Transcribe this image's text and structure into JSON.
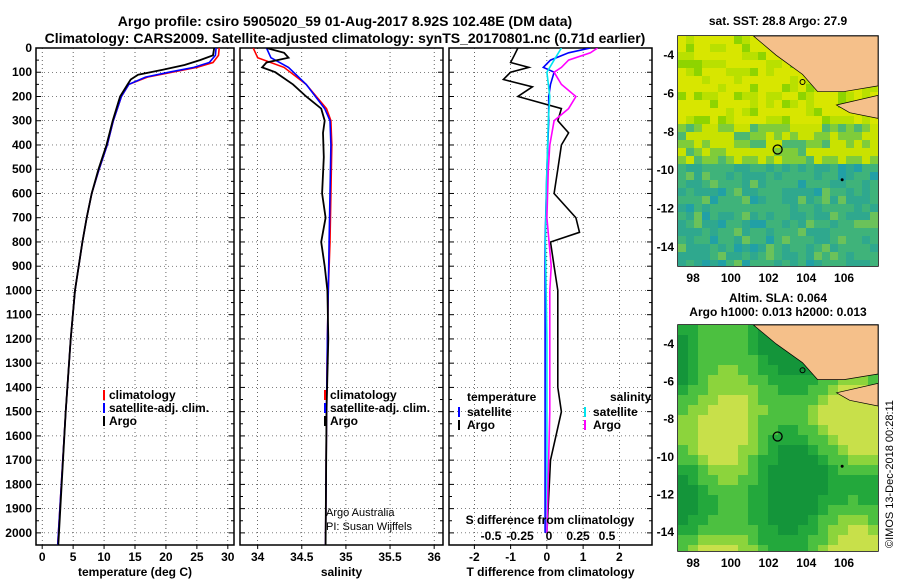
{
  "title_line1": "Argo profile: csiro 5905020_59 01-Aug-2017 8.92S 102.48E (DM data)",
  "title_line2": "Climatology: CARS2009. Satellite-adjusted climatology: synTS_20170801.nc (0.71d earlier)",
  "colors": {
    "climatology": "#ff0000",
    "satellite": "#0000ff",
    "argo": "#000000",
    "sat_salinity": "#00e5ee",
    "argo_salinity": "#ff00ff",
    "land": "#f5c08a"
  },
  "chart_data": [
    {
      "type": "line",
      "xlabel": "temperature (deg C)",
      "ylabel": "",
      "xlim": [
        -1,
        31
      ],
      "ylim": [
        2050,
        0
      ],
      "xticks": [
        0,
        5,
        10,
        15,
        20,
        25,
        30
      ],
      "yticks": [
        0,
        100,
        200,
        300,
        400,
        500,
        600,
        700,
        800,
        900,
        1000,
        1100,
        1200,
        1300,
        1400,
        1500,
        1600,
        1700,
        1800,
        1900,
        2000
      ],
      "legend": [
        "climatology",
        "satellite-adj. clim.",
        "Argo"
      ],
      "series": [
        {
          "name": "climatology",
          "depth": [
            0,
            30,
            60,
            80,
            100,
            120,
            150,
            200,
            300,
            400,
            500,
            600,
            700,
            800,
            1000,
            1200,
            1500,
            2050
          ],
          "values": [
            28.6,
            28.5,
            27.6,
            25,
            21,
            17,
            14,
            12.8,
            11.5,
            10.5,
            9.2,
            8,
            7.2,
            6.5,
            5.3,
            4.6,
            3.8,
            2.5
          ]
        },
        {
          "name": "satellite-adj. clim.",
          "depth": [
            0,
            30,
            60,
            80,
            100,
            120,
            150,
            200,
            300,
            400,
            500,
            600,
            700,
            800,
            1000,
            1200,
            1500,
            2050
          ],
          "values": [
            28.1,
            28,
            27,
            24.5,
            20.5,
            16.7,
            14,
            12.8,
            11.5,
            10.5,
            9.2,
            8,
            7.2,
            6.5,
            5.3,
            4.6,
            3.8,
            2.5
          ]
        },
        {
          "name": "Argo",
          "depth": [
            0,
            30,
            50,
            70,
            90,
            110,
            130,
            150,
            200,
            300,
            400,
            500,
            600,
            700,
            800,
            1000,
            1200,
            1500,
            2050
          ],
          "values": [
            27.8,
            27.6,
            25.5,
            23,
            19.5,
            15.5,
            14.3,
            13.8,
            12.6,
            11.4,
            10.4,
            9.1,
            8,
            7.2,
            6.5,
            5.3,
            4.6,
            3.8,
            2.6
          ]
        }
      ]
    },
    {
      "type": "line",
      "xlabel": "salinity",
      "xlim": [
        33.8,
        36.1
      ],
      "ylim": [
        2050,
        0
      ],
      "xticks": [
        34,
        34.5,
        35,
        35.5,
        36
      ],
      "legend": [
        "climatology",
        "satellite-adj. clim.",
        "Argo"
      ],
      "annotation": [
        "Argo Australia",
        "PI: Susan Wijffels"
      ],
      "series": [
        {
          "name": "climatology",
          "depth": [
            0,
            40,
            80,
            150,
            250,
            300,
            400,
            600,
            800,
            1000,
            1200,
            1500,
            2050
          ],
          "values": [
            33.95,
            34.0,
            34.3,
            34.55,
            34.78,
            34.83,
            34.84,
            34.83,
            34.82,
            34.8,
            34.79,
            34.78,
            34.77
          ]
        },
        {
          "name": "satellite-adj. clim.",
          "depth": [
            0,
            40,
            80,
            150,
            250,
            300,
            400,
            600,
            800,
            1000,
            1200,
            1500,
            2050
          ],
          "values": [
            34.1,
            34.15,
            34.35,
            34.55,
            34.76,
            34.82,
            34.83,
            34.82,
            34.81,
            34.8,
            34.79,
            34.78,
            34.77
          ]
        },
        {
          "name": "Argo",
          "depth": [
            0,
            20,
            40,
            60,
            80,
            100,
            150,
            200,
            250,
            300,
            350,
            450,
            600,
            700,
            800,
            900,
            1000,
            1200,
            1500,
            2050
          ],
          "values": [
            34.1,
            34.3,
            34.35,
            34.1,
            34.05,
            34.2,
            34.4,
            34.55,
            34.72,
            34.76,
            34.74,
            34.75,
            34.73,
            34.77,
            34.72,
            34.76,
            34.79,
            34.8,
            34.78,
            34.77
          ]
        }
      ]
    },
    {
      "type": "line",
      "xlabel": "T difference from climatology",
      "xlabel_top": "S difference from climatology",
      "xlim": [
        -2.7,
        2.9
      ],
      "ylim": [
        2050,
        0
      ],
      "xticks": [
        -2,
        -1,
        0,
        1,
        2
      ],
      "xticks_top": [
        -0.5,
        -0.25,
        0,
        0.25,
        0.5
      ],
      "legend_left_title": "temperature",
      "legend_right_title": "salinity",
      "legend": [
        "satellite",
        "Argo",
        "satellite",
        "Argo"
      ],
      "series": [
        {
          "name": "satellite",
          "kind": "temperature",
          "depth": [
            0,
            20,
            50,
            80,
            100,
            150,
            200,
            300,
            500,
            800,
            1200,
            1600,
            2000
          ],
          "values": [
            1.2,
            0.6,
            0.1,
            -0.1,
            0.2,
            0.1,
            0.05,
            0.05,
            0.0,
            -0.05,
            -0.05,
            -0.05,
            -0.05
          ]
        },
        {
          "name": "Argo",
          "kind": "temperature",
          "depth": [
            0,
            30,
            60,
            80,
            100,
            130,
            160,
            200,
            250,
            300,
            350,
            400,
            500,
            600,
            700,
            760,
            800,
            900,
            1000,
            1200,
            1400,
            1500,
            1700,
            2000
          ],
          "values": [
            -0.8,
            -0.9,
            -1.0,
            -0.5,
            -1.0,
            -1.2,
            -0.4,
            -0.8,
            0.4,
            0.3,
            0.6,
            0.4,
            0.3,
            0.2,
            0.8,
            0.9,
            0.1,
            0.2,
            0.3,
            0.3,
            0.3,
            0.4,
            0.1,
            0.0
          ]
        },
        {
          "name": "satellite",
          "kind": "salinity",
          "depth": [
            0,
            50,
            100,
            200,
            300,
            500,
            800,
            1200,
            1600,
            2000
          ],
          "values": [
            0.1,
            0.05,
            0.0,
            0.02,
            0.01,
            0.0,
            -0.01,
            0.0,
            0.0,
            0.0
          ]
        },
        {
          "name": "Argo",
          "kind": "salinity",
          "depth": [
            0,
            20,
            50,
            80,
            100,
            150,
            200,
            250,
            300,
            400,
            500,
            700,
            900,
            1000,
            1300,
            1500,
            2000
          ],
          "values": [
            0.35,
            0.3,
            0.15,
            0.1,
            0.05,
            0.1,
            0.2,
            0.15,
            0.05,
            0.02,
            0.01,
            0.0,
            0.03,
            0.02,
            0.02,
            0.02,
            0.0
          ]
        }
      ]
    },
    {
      "type": "heatmap",
      "title": "sat. SST: 28.8 Argo: 27.9",
      "xlim": [
        97.2,
        107.8
      ],
      "ylim": [
        -15,
        -3
      ],
      "xticks": [
        98,
        100,
        102,
        104,
        106
      ],
      "yticks": [
        -4,
        -6,
        -8,
        -10,
        -12,
        -14
      ]
    },
    {
      "type": "heatmap",
      "title_line1": "Altim. SLA: 0.064",
      "title_line2": "Argo h1000: 0.013 h2000: 0.013",
      "xlim": [
        97.2,
        107.8
      ],
      "ylim": [
        -15,
        -3
      ],
      "xticks": [
        98,
        100,
        102,
        104,
        106
      ],
      "yticks": [
        -4,
        -6,
        -8,
        -10,
        -12,
        -14
      ]
    }
  ],
  "footer": "©IMOS 13-Dec-2018 00:28:11"
}
